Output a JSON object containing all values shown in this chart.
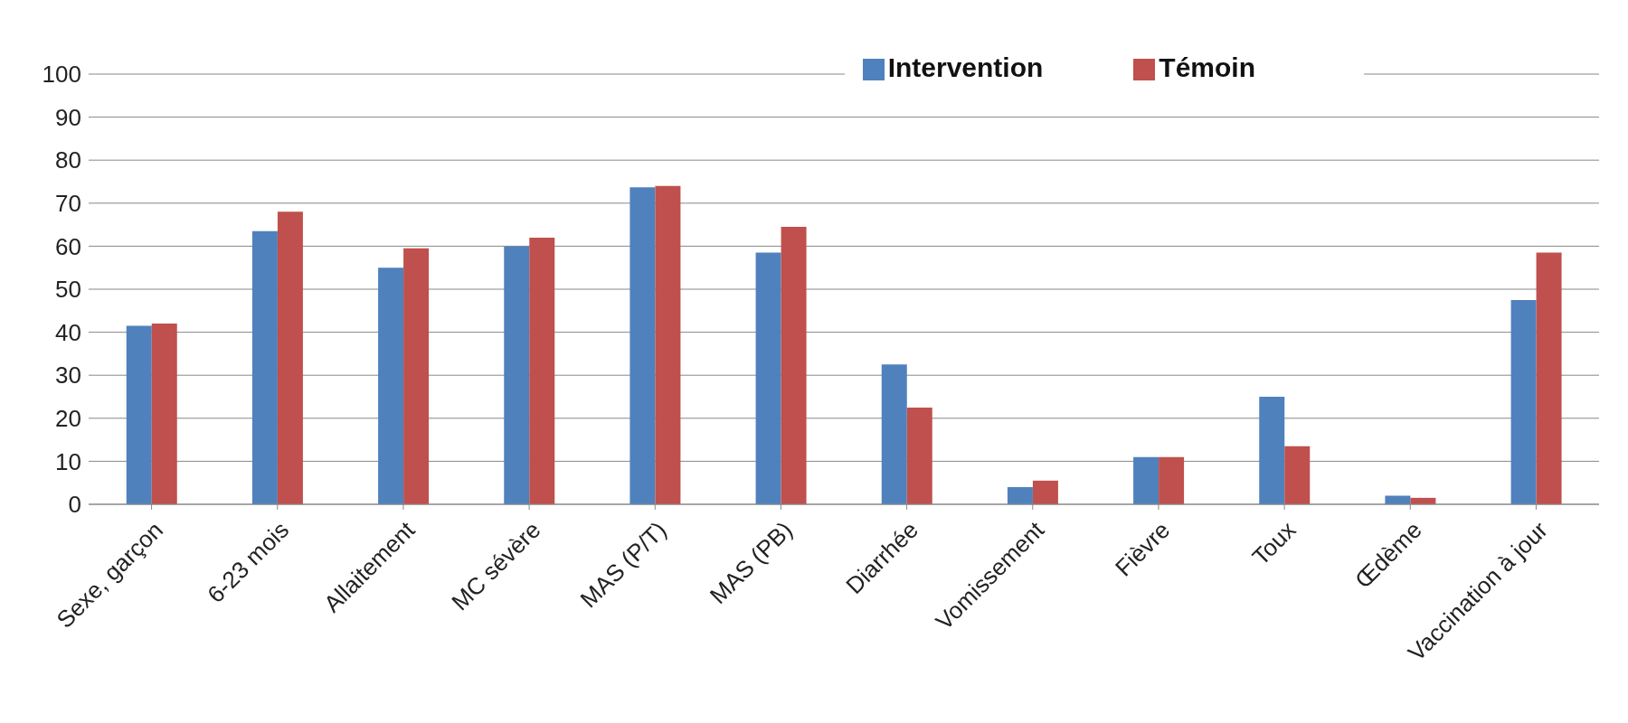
{
  "chart_data": {
    "type": "bar",
    "categories": [
      "Sexe, garçon",
      "6-23 mois",
      "Allaitement",
      "MC sévère",
      "MAS (P/T)",
      "MAS (PB)",
      "Diarrhée",
      "Vomissement",
      "Fièvre",
      "Toux",
      "Œdème",
      "Vaccination à jour"
    ],
    "series": [
      {
        "name": "Intervention",
        "color": "#4f81bd",
        "values": [
          41.5,
          63.5,
          55,
          60,
          73.7,
          58.5,
          32.5,
          4,
          11,
          25,
          2,
          47.5
        ]
      },
      {
        "name": "Témoin",
        "color": "#c0504d",
        "values": [
          42,
          68,
          59.5,
          62,
          74,
          64.5,
          22.5,
          5.5,
          11,
          13.5,
          1.5,
          58.5
        ]
      }
    ],
    "ylim": [
      0,
      100
    ],
    "yticks": [
      0,
      10,
      20,
      30,
      40,
      50,
      60,
      70,
      80,
      90,
      100
    ],
    "grid": "y",
    "legend": "top right"
  }
}
